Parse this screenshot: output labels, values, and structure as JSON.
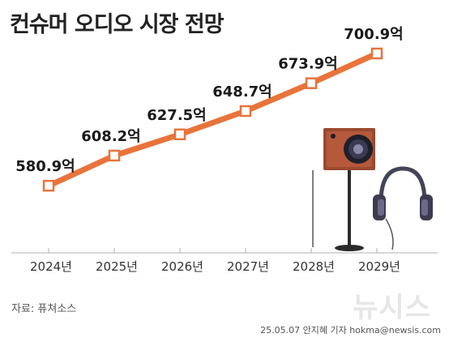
{
  "title": "컨슈머 오디오 시장 전망",
  "source": "자료: 퓨쳐소스",
  "credit": "25.05.07 안지혜 기자 hokma@newsis.com",
  "watermark": "뉴시스",
  "colors": {
    "line": "#e8743b",
    "marker_fill": "#ffffff",
    "axis": "#b0b0b0"
  },
  "chart_data": {
    "type": "line",
    "categories": [
      "2024년",
      "2025년",
      "2026년",
      "2027년",
      "2028년",
      "2029년"
    ],
    "values": [
      580.9,
      608.2,
      627.5,
      648.7,
      673.9,
      700.9
    ],
    "value_labels": [
      "580.9억",
      "608.2억",
      "627.5억",
      "648.7억",
      "673.9억",
      "700.9억"
    ],
    "ylim": [
      520,
      720
    ],
    "grid": false,
    "xlabel": "",
    "ylabel": ""
  }
}
